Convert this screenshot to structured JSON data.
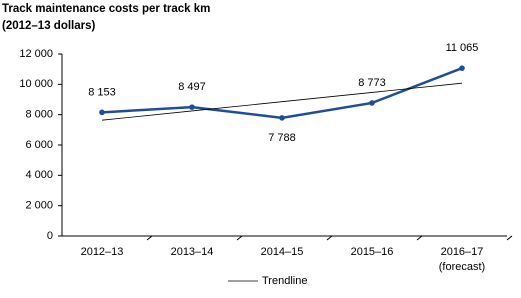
{
  "chart_data": {
    "type": "line",
    "title": "Track maintenance costs per track km",
    "subtitle": "(2012–13 dollars)",
    "categories": [
      [
        "2012–13"
      ],
      [
        "2013–14"
      ],
      [
        "2014–15"
      ],
      [
        "2015–16"
      ],
      [
        "2016–17",
        "(forecast)"
      ]
    ],
    "series": [
      {
        "color": "#1f4e96",
        "values": [
          8153,
          8497,
          7788,
          8773,
          11065
        ],
        "value_labels": [
          "8 153",
          "8 497",
          "7 788",
          "8 773",
          "11 065"
        ]
      },
      {
        "name": "Trendline",
        "color": "#000000",
        "values": [
          7635,
          8245,
          8855,
          9465,
          10075
        ]
      }
    ],
    "ylim": [
      0,
      12000
    ],
    "yticks": [
      0,
      {
        "value": 2000,
        "label": "2 000"
      },
      {
        "value": 4000,
        "label": "4 000"
      },
      {
        "value": 6000,
        "label": "6 000"
      },
      {
        "value": 8000,
        "label": "8 000"
      },
      {
        "value": 10000,
        "label": "10 000"
      },
      {
        "value": 12000,
        "label": "12 000"
      }
    ],
    "legend": "bottom"
  }
}
